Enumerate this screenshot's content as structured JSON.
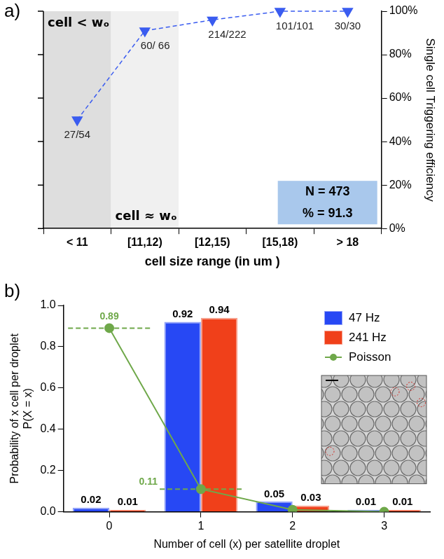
{
  "chart_data": [
    {
      "panel_label": "a)",
      "type": "line",
      "categories": [
        "< 11",
        "[11,12)",
        "[12,15)",
        "[15,18)",
        "> 18"
      ],
      "values": [
        50,
        91,
        96,
        100,
        100
      ],
      "color": "#3a5cf0",
      "marker": "triangle-down",
      "line_style": "dashed",
      "point_labels": [
        "27/54",
        "60/ 66",
        "214/222",
        "101/101",
        "30/30"
      ],
      "x_label": "cell size range (in um )",
      "y_label": "Single cell Triggering efficiency",
      "ylim": [
        0,
        100
      ],
      "yticks": [
        {
          "value": 0,
          "label": "0%"
        },
        {
          "value": 20,
          "label": "20%"
        },
        {
          "value": 40,
          "label": "40%"
        },
        {
          "value": 60,
          "label": "60%"
        },
        {
          "value": 80,
          "label": "80%"
        },
        {
          "value": 100,
          "label": "100%"
        }
      ],
      "grid": false,
      "regions": [
        {
          "category": "< 11",
          "label": "cell < wₒ",
          "color": "#dedede"
        },
        {
          "category": "[11,12)",
          "label": "cell ≈ wₒ",
          "color": "#f0f0f0"
        }
      ],
      "box": {
        "lines": [
          "N = 473",
          "% = 91.3"
        ],
        "color": "#a9c8ec"
      }
    },
    {
      "panel_label": "b)",
      "type": "bar",
      "categories": [
        "0",
        "1",
        "2",
        "3"
      ],
      "series": [
        {
          "name": "47 Hz",
          "color": "#2748f4",
          "values": [
            0.02,
            0.92,
            0.05,
            0.01
          ],
          "data_labels": true
        },
        {
          "name": "241 Hz",
          "color": "#f0401a",
          "values": [
            0.01,
            0.94,
            0.03,
            0.01
          ],
          "data_labels": true
        },
        {
          "name": "Poisson",
          "type": "line",
          "color": "#6fa84a",
          "marker": "circle",
          "values": [
            0.89,
            0.11,
            0.01,
            0
          ],
          "data_labels": true,
          "value_labels": [
            "0.89",
            "0.11",
            null,
            null
          ]
        }
      ],
      "x_label": "Number of cell (x) per satellite droplet",
      "y_label": [
        "Probability of x cell per droplet",
        "P(X = x)"
      ],
      "ylim": [
        0,
        1
      ],
      "yticks": [
        {
          "value": 0,
          "label": "0.0"
        },
        0.2,
        0.4,
        0.6,
        0.8,
        {
          "value": 1,
          "label": "1.0"
        }
      ],
      "grid": false,
      "legend": "upper right"
    }
  ]
}
